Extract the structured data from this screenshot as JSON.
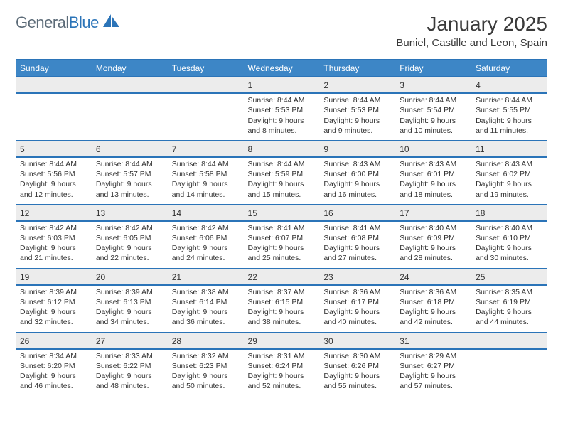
{
  "brand": {
    "part1": "General",
    "part2": "Blue"
  },
  "title": "January 2025",
  "location": "Buniel, Castille and Leon, Spain",
  "colors": {
    "header_bg": "#3d86c6",
    "header_border": "#2b74b8",
    "daynum_bg": "#ececec",
    "text": "#333333",
    "page_bg": "#ffffff"
  },
  "dayNames": [
    "Sunday",
    "Monday",
    "Tuesday",
    "Wednesday",
    "Thursday",
    "Friday",
    "Saturday"
  ],
  "weeks": [
    [
      null,
      null,
      null,
      {
        "n": "1",
        "sr": "8:44 AM",
        "ss": "5:53 PM",
        "dl": "9 hours and 8 minutes."
      },
      {
        "n": "2",
        "sr": "8:44 AM",
        "ss": "5:53 PM",
        "dl": "9 hours and 9 minutes."
      },
      {
        "n": "3",
        "sr": "8:44 AM",
        "ss": "5:54 PM",
        "dl": "9 hours and 10 minutes."
      },
      {
        "n": "4",
        "sr": "8:44 AM",
        "ss": "5:55 PM",
        "dl": "9 hours and 11 minutes."
      }
    ],
    [
      {
        "n": "5",
        "sr": "8:44 AM",
        "ss": "5:56 PM",
        "dl": "9 hours and 12 minutes."
      },
      {
        "n": "6",
        "sr": "8:44 AM",
        "ss": "5:57 PM",
        "dl": "9 hours and 13 minutes."
      },
      {
        "n": "7",
        "sr": "8:44 AM",
        "ss": "5:58 PM",
        "dl": "9 hours and 14 minutes."
      },
      {
        "n": "8",
        "sr": "8:44 AM",
        "ss": "5:59 PM",
        "dl": "9 hours and 15 minutes."
      },
      {
        "n": "9",
        "sr": "8:43 AM",
        "ss": "6:00 PM",
        "dl": "9 hours and 16 minutes."
      },
      {
        "n": "10",
        "sr": "8:43 AM",
        "ss": "6:01 PM",
        "dl": "9 hours and 18 minutes."
      },
      {
        "n": "11",
        "sr": "8:43 AM",
        "ss": "6:02 PM",
        "dl": "9 hours and 19 minutes."
      }
    ],
    [
      {
        "n": "12",
        "sr": "8:42 AM",
        "ss": "6:03 PM",
        "dl": "9 hours and 21 minutes."
      },
      {
        "n": "13",
        "sr": "8:42 AM",
        "ss": "6:05 PM",
        "dl": "9 hours and 22 minutes."
      },
      {
        "n": "14",
        "sr": "8:42 AM",
        "ss": "6:06 PM",
        "dl": "9 hours and 24 minutes."
      },
      {
        "n": "15",
        "sr": "8:41 AM",
        "ss": "6:07 PM",
        "dl": "9 hours and 25 minutes."
      },
      {
        "n": "16",
        "sr": "8:41 AM",
        "ss": "6:08 PM",
        "dl": "9 hours and 27 minutes."
      },
      {
        "n": "17",
        "sr": "8:40 AM",
        "ss": "6:09 PM",
        "dl": "9 hours and 28 minutes."
      },
      {
        "n": "18",
        "sr": "8:40 AM",
        "ss": "6:10 PM",
        "dl": "9 hours and 30 minutes."
      }
    ],
    [
      {
        "n": "19",
        "sr": "8:39 AM",
        "ss": "6:12 PM",
        "dl": "9 hours and 32 minutes."
      },
      {
        "n": "20",
        "sr": "8:39 AM",
        "ss": "6:13 PM",
        "dl": "9 hours and 34 minutes."
      },
      {
        "n": "21",
        "sr": "8:38 AM",
        "ss": "6:14 PM",
        "dl": "9 hours and 36 minutes."
      },
      {
        "n": "22",
        "sr": "8:37 AM",
        "ss": "6:15 PM",
        "dl": "9 hours and 38 minutes."
      },
      {
        "n": "23",
        "sr": "8:36 AM",
        "ss": "6:17 PM",
        "dl": "9 hours and 40 minutes."
      },
      {
        "n": "24",
        "sr": "8:36 AM",
        "ss": "6:18 PM",
        "dl": "9 hours and 42 minutes."
      },
      {
        "n": "25",
        "sr": "8:35 AM",
        "ss": "6:19 PM",
        "dl": "9 hours and 44 minutes."
      }
    ],
    [
      {
        "n": "26",
        "sr": "8:34 AM",
        "ss": "6:20 PM",
        "dl": "9 hours and 46 minutes."
      },
      {
        "n": "27",
        "sr": "8:33 AM",
        "ss": "6:22 PM",
        "dl": "9 hours and 48 minutes."
      },
      {
        "n": "28",
        "sr": "8:32 AM",
        "ss": "6:23 PM",
        "dl": "9 hours and 50 minutes."
      },
      {
        "n": "29",
        "sr": "8:31 AM",
        "ss": "6:24 PM",
        "dl": "9 hours and 52 minutes."
      },
      {
        "n": "30",
        "sr": "8:30 AM",
        "ss": "6:26 PM",
        "dl": "9 hours and 55 minutes."
      },
      {
        "n": "31",
        "sr": "8:29 AM",
        "ss": "6:27 PM",
        "dl": "9 hours and 57 minutes."
      },
      null
    ]
  ],
  "labels": {
    "sunrise": "Sunrise:",
    "sunset": "Sunset:",
    "daylight": "Daylight:"
  }
}
